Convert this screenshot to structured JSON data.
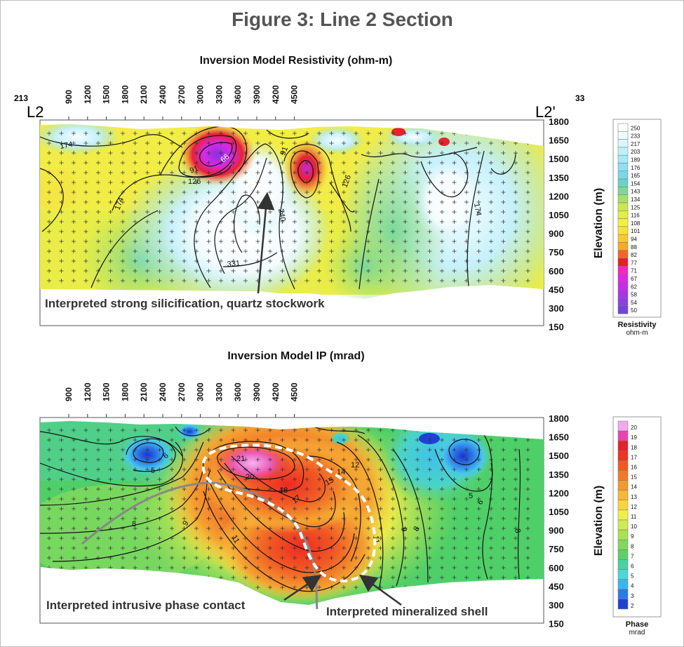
{
  "figure_title": "Figure 3: Line 2 Section",
  "line_start": {
    "station": "213",
    "label": "L2"
  },
  "line_end": {
    "station": "33",
    "label": "L2'"
  },
  "x_ticks": [
    "900",
    "1200",
    "1500",
    "1800",
    "2100",
    "2400",
    "2700",
    "3000",
    "3300",
    "3600",
    "3900",
    "4200",
    "4500"
  ],
  "y_ticks": [
    "1800",
    "1650",
    "1500",
    "1350",
    "1200",
    "1050",
    "900",
    "750",
    "600",
    "450",
    "300",
    "150"
  ],
  "elevation_label": "Elevation (m)",
  "resistivity": {
    "title": "Inversion Model Resistivity (ohm-m)",
    "legend_title": "Resistivity",
    "legend_unit": "ohm-m",
    "legend_values": [
      "250",
      "233",
      "217",
      "203",
      "189",
      "176",
      "165",
      "154",
      "143",
      "134",
      "125",
      "116",
      "108",
      "101",
      "94",
      "88",
      "82",
      "77",
      "71",
      "67",
      "62",
      "58",
      "54",
      "50"
    ],
    "legend_colors": [
      "#fcfeff",
      "#ecfbfe",
      "#d8f6fd",
      "#bff0fb",
      "#a6e8f8",
      "#8fdff3",
      "#7ad8e6",
      "#6cd3c4",
      "#7fd898",
      "#a6e06a",
      "#c9e84e",
      "#e4ee44",
      "#f2f044",
      "#f8e03a",
      "#fac832",
      "#f8a82c",
      "#f3662a",
      "#e81c2a",
      "#f226c2",
      "#e026e0",
      "#c82ce8",
      "#a836e8",
      "#8c40e4",
      "#7244dc"
    ],
    "contour_labels": [
      "174",
      "126",
      "91",
      "66",
      "91",
      "126",
      "174",
      "240",
      "331",
      "174"
    ],
    "annotation": "Interpreted strong silicification, quartz stockwork"
  },
  "ip": {
    "title": "Inversion Model IP (mrad)",
    "legend_title": "Phase",
    "legend_unit": "mrad",
    "legend_values": [
      "20",
      "19",
      "18",
      "17",
      "16",
      "15",
      "14",
      "13",
      "12",
      "11",
      "10",
      "9",
      "8",
      "7",
      "6",
      "5",
      "4",
      "3",
      "2"
    ],
    "legend_colors": [
      "#f6a6ee",
      "#e844b0",
      "#e8202a",
      "#ee3222",
      "#f05a22",
      "#f27a26",
      "#f49a2c",
      "#f6b836",
      "#f8d43e",
      "#eef04a",
      "#cdea52",
      "#a8e256",
      "#82d85c",
      "#5cd06a",
      "#4ad2a0",
      "#4ad8d8",
      "#3ab6ee",
      "#2c7ae8",
      "#2040d4"
    ],
    "contour_labels": [
      "5",
      "6",
      "8",
      "9",
      "11",
      "21",
      "20",
      "18",
      "17",
      "15",
      "14",
      "12",
      "11",
      "9",
      "8",
      "5",
      "6",
      "8"
    ],
    "annotations": [
      "Interpreted intrusive phase contact",
      "Interpreted mineralized shell"
    ]
  }
}
